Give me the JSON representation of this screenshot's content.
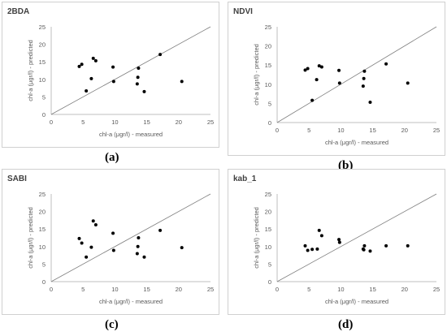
{
  "chart_data": [
    {
      "type": "scatter",
      "title": "2BDA",
      "caption": "(a)",
      "xlabel": "chl-a (μgr/l) - measured",
      "ylabel": "chl-a (μgr/l) - predicted",
      "xlim": [
        0,
        25
      ],
      "ylim": [
        0,
        25
      ],
      "xticks": [
        "0",
        "5",
        "10",
        "15",
        "20",
        "25"
      ],
      "yticks": [
        "0",
        "5",
        "10",
        "15",
        "20",
        "25"
      ],
      "reference_line": "y = x",
      "points": [
        [
          4.4,
          13.7
        ],
        [
          4.8,
          14.3
        ],
        [
          5.5,
          6.7
        ],
        [
          6.3,
          10.2
        ],
        [
          6.6,
          16.0
        ],
        [
          7.0,
          15.3
        ],
        [
          9.7,
          13.5
        ],
        [
          9.8,
          9.4
        ],
        [
          13.5,
          8.7
        ],
        [
          13.6,
          10.6
        ],
        [
          13.7,
          13.2
        ],
        [
          14.6,
          6.5
        ],
        [
          17.1,
          17.1
        ],
        [
          20.5,
          9.4
        ]
      ],
      "grid": false
    },
    {
      "type": "scatter",
      "title": "NDVI",
      "caption": "(b)",
      "xlabel": "chl-a (μgr/l) - measured",
      "ylabel": "chl-a (μgr/l) - predicted",
      "xlim": [
        0,
        25
      ],
      "ylim": [
        0,
        25
      ],
      "xticks": [
        "0",
        "5",
        "10",
        "15",
        "20",
        "25"
      ],
      "yticks": [
        "0",
        "5",
        "10",
        "15",
        "20",
        "25"
      ],
      "reference_line": "y = x",
      "points": [
        [
          4.4,
          13.7
        ],
        [
          4.8,
          14.1
        ],
        [
          5.5,
          5.8
        ],
        [
          6.2,
          11.2
        ],
        [
          6.6,
          14.8
        ],
        [
          7.0,
          14.5
        ],
        [
          9.7,
          13.6
        ],
        [
          9.8,
          10.3
        ],
        [
          13.5,
          9.5
        ],
        [
          13.6,
          11.5
        ],
        [
          13.7,
          13.4
        ],
        [
          14.6,
          5.3
        ],
        [
          17.1,
          15.3
        ],
        [
          20.5,
          10.3
        ]
      ],
      "grid": false
    },
    {
      "type": "scatter",
      "title": "SABI",
      "caption": "(c)",
      "xlabel": "chl-a (μgr/l) - measured",
      "ylabel": "chl-a (μgr/l) - predicted",
      "xlim": [
        0,
        25
      ],
      "ylim": [
        0,
        25
      ],
      "xticks": [
        "0",
        "5",
        "10",
        "15",
        "20",
        "25"
      ],
      "yticks": [
        "0",
        "5",
        "10",
        "15",
        "20",
        "25"
      ],
      "reference_line": "y = x",
      "points": [
        [
          4.4,
          12.3
        ],
        [
          4.8,
          11.0
        ],
        [
          5.5,
          7.0
        ],
        [
          6.3,
          9.8
        ],
        [
          6.6,
          17.3
        ],
        [
          7.0,
          16.2
        ],
        [
          9.7,
          13.8
        ],
        [
          9.8,
          8.9
        ],
        [
          13.5,
          8.0
        ],
        [
          13.6,
          10.0
        ],
        [
          13.7,
          12.5
        ],
        [
          14.6,
          7.0
        ],
        [
          17.1,
          14.6
        ],
        [
          20.5,
          9.7
        ]
      ],
      "grid": false
    },
    {
      "type": "scatter",
      "title": "kab_1",
      "caption": "(d)",
      "xlabel": "chl-a (μgr/l) - measured",
      "ylabel": "chl-a (μgr/l) - predicted",
      "xlim": [
        0,
        25
      ],
      "ylim": [
        0,
        25
      ],
      "xticks": [
        "0",
        "5",
        "10",
        "15",
        "20",
        "25"
      ],
      "yticks": [
        "0",
        "5",
        "10",
        "15",
        "20",
        "25"
      ],
      "reference_line": "y = x",
      "points": [
        [
          4.4,
          10.2
        ],
        [
          4.8,
          8.9
        ],
        [
          5.5,
          9.2
        ],
        [
          6.3,
          9.3
        ],
        [
          6.6,
          14.6
        ],
        [
          7.0,
          13.1
        ],
        [
          9.7,
          12.0
        ],
        [
          9.8,
          11.2
        ],
        [
          13.5,
          9.3
        ],
        [
          13.6,
          9.1
        ],
        [
          13.7,
          10.2
        ],
        [
          14.6,
          8.7
        ],
        [
          17.1,
          10.2
        ],
        [
          20.5,
          10.2
        ]
      ],
      "grid": false
    }
  ]
}
